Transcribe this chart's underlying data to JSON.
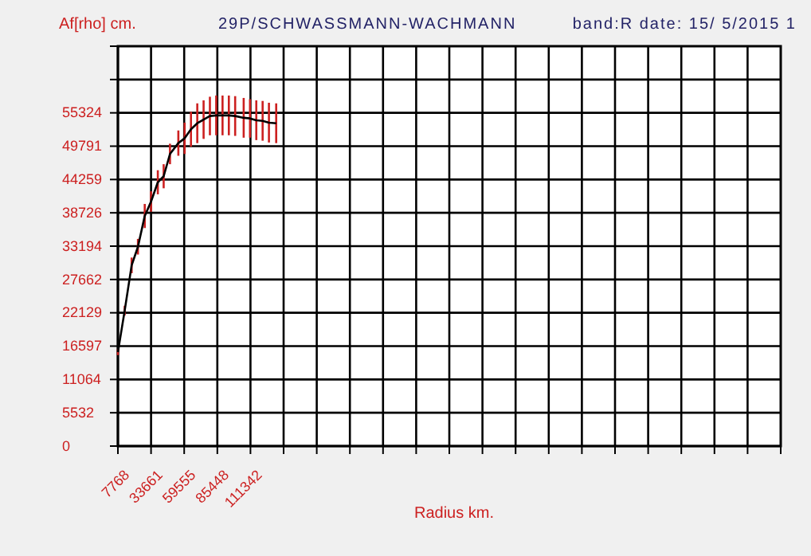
{
  "chart_data": {
    "type": "line",
    "title": "29P/SCHWASSMANN-WACHMANN",
    "subtitle": "band:R date: 15/ 5/2015 1",
    "xlabel": "Radius km.",
    "ylabel": "Af[rho] cm.",
    "x": [
      7768,
      13070,
      18500,
      23430,
      28730,
      33660,
      38960,
      43520,
      48460,
      54990,
      59920,
      64850,
      69790,
      74720,
      79650,
      84580,
      89520,
      94450,
      99380,
      106040,
      110970,
      115900,
      120840,
      125770,
      131440
    ],
    "series": [
      {
        "color": "#000000",
        "values": [
          15600,
          22500,
          30000,
          33100,
          38200,
          40600,
          43800,
          44800,
          48500,
          50300,
          51100,
          52600,
          53600,
          54200,
          54800,
          54900,
          54900,
          54900,
          54800,
          54500,
          54400,
          54100,
          54000,
          53700,
          53600
        ],
        "errors": [
          500,
          800,
          1300,
          1300,
          2000,
          1700,
          2000,
          2000,
          1700,
          2100,
          2600,
          2900,
          3300,
          3200,
          3200,
          3300,
          3300,
          3300,
          3300,
          3300,
          3200,
          3300,
          3300,
          3300,
          3300
        ]
      }
    ],
    "xlim": [
      7768,
      525638
    ],
    "xticks": [
      7768,
      33661,
      59555,
      85448,
      111342,
      {
        "value": 137235,
        "label": null
      },
      {
        "value": 163129,
        "label": null
      },
      {
        "value": 189022,
        "label": null
      },
      {
        "value": 214916,
        "label": null
      },
      {
        "value": 240809,
        "label": null
      },
      {
        "value": 266703,
        "label": null
      },
      {
        "value": 292596,
        "label": null
      },
      {
        "value": 318490,
        "label": null
      },
      {
        "value": 344383,
        "label": null
      },
      {
        "value": 370277,
        "label": null
      },
      {
        "value": 396170,
        "label": null
      },
      {
        "value": 422064,
        "label": null
      },
      {
        "value": 447957,
        "label": null
      },
      {
        "value": 473851,
        "label": null
      },
      {
        "value": 499744,
        "label": null
      }
    ],
    "ylim": [
      0,
      66389
    ],
    "yticks": [
      0,
      5532,
      11064,
      16597,
      22129,
      27662,
      33194,
      38726,
      44259,
      49791,
      55324,
      {
        "value": 60856,
        "label": null
      }
    ],
    "grid": true,
    "marker": "none",
    "line_style": "solid"
  }
}
